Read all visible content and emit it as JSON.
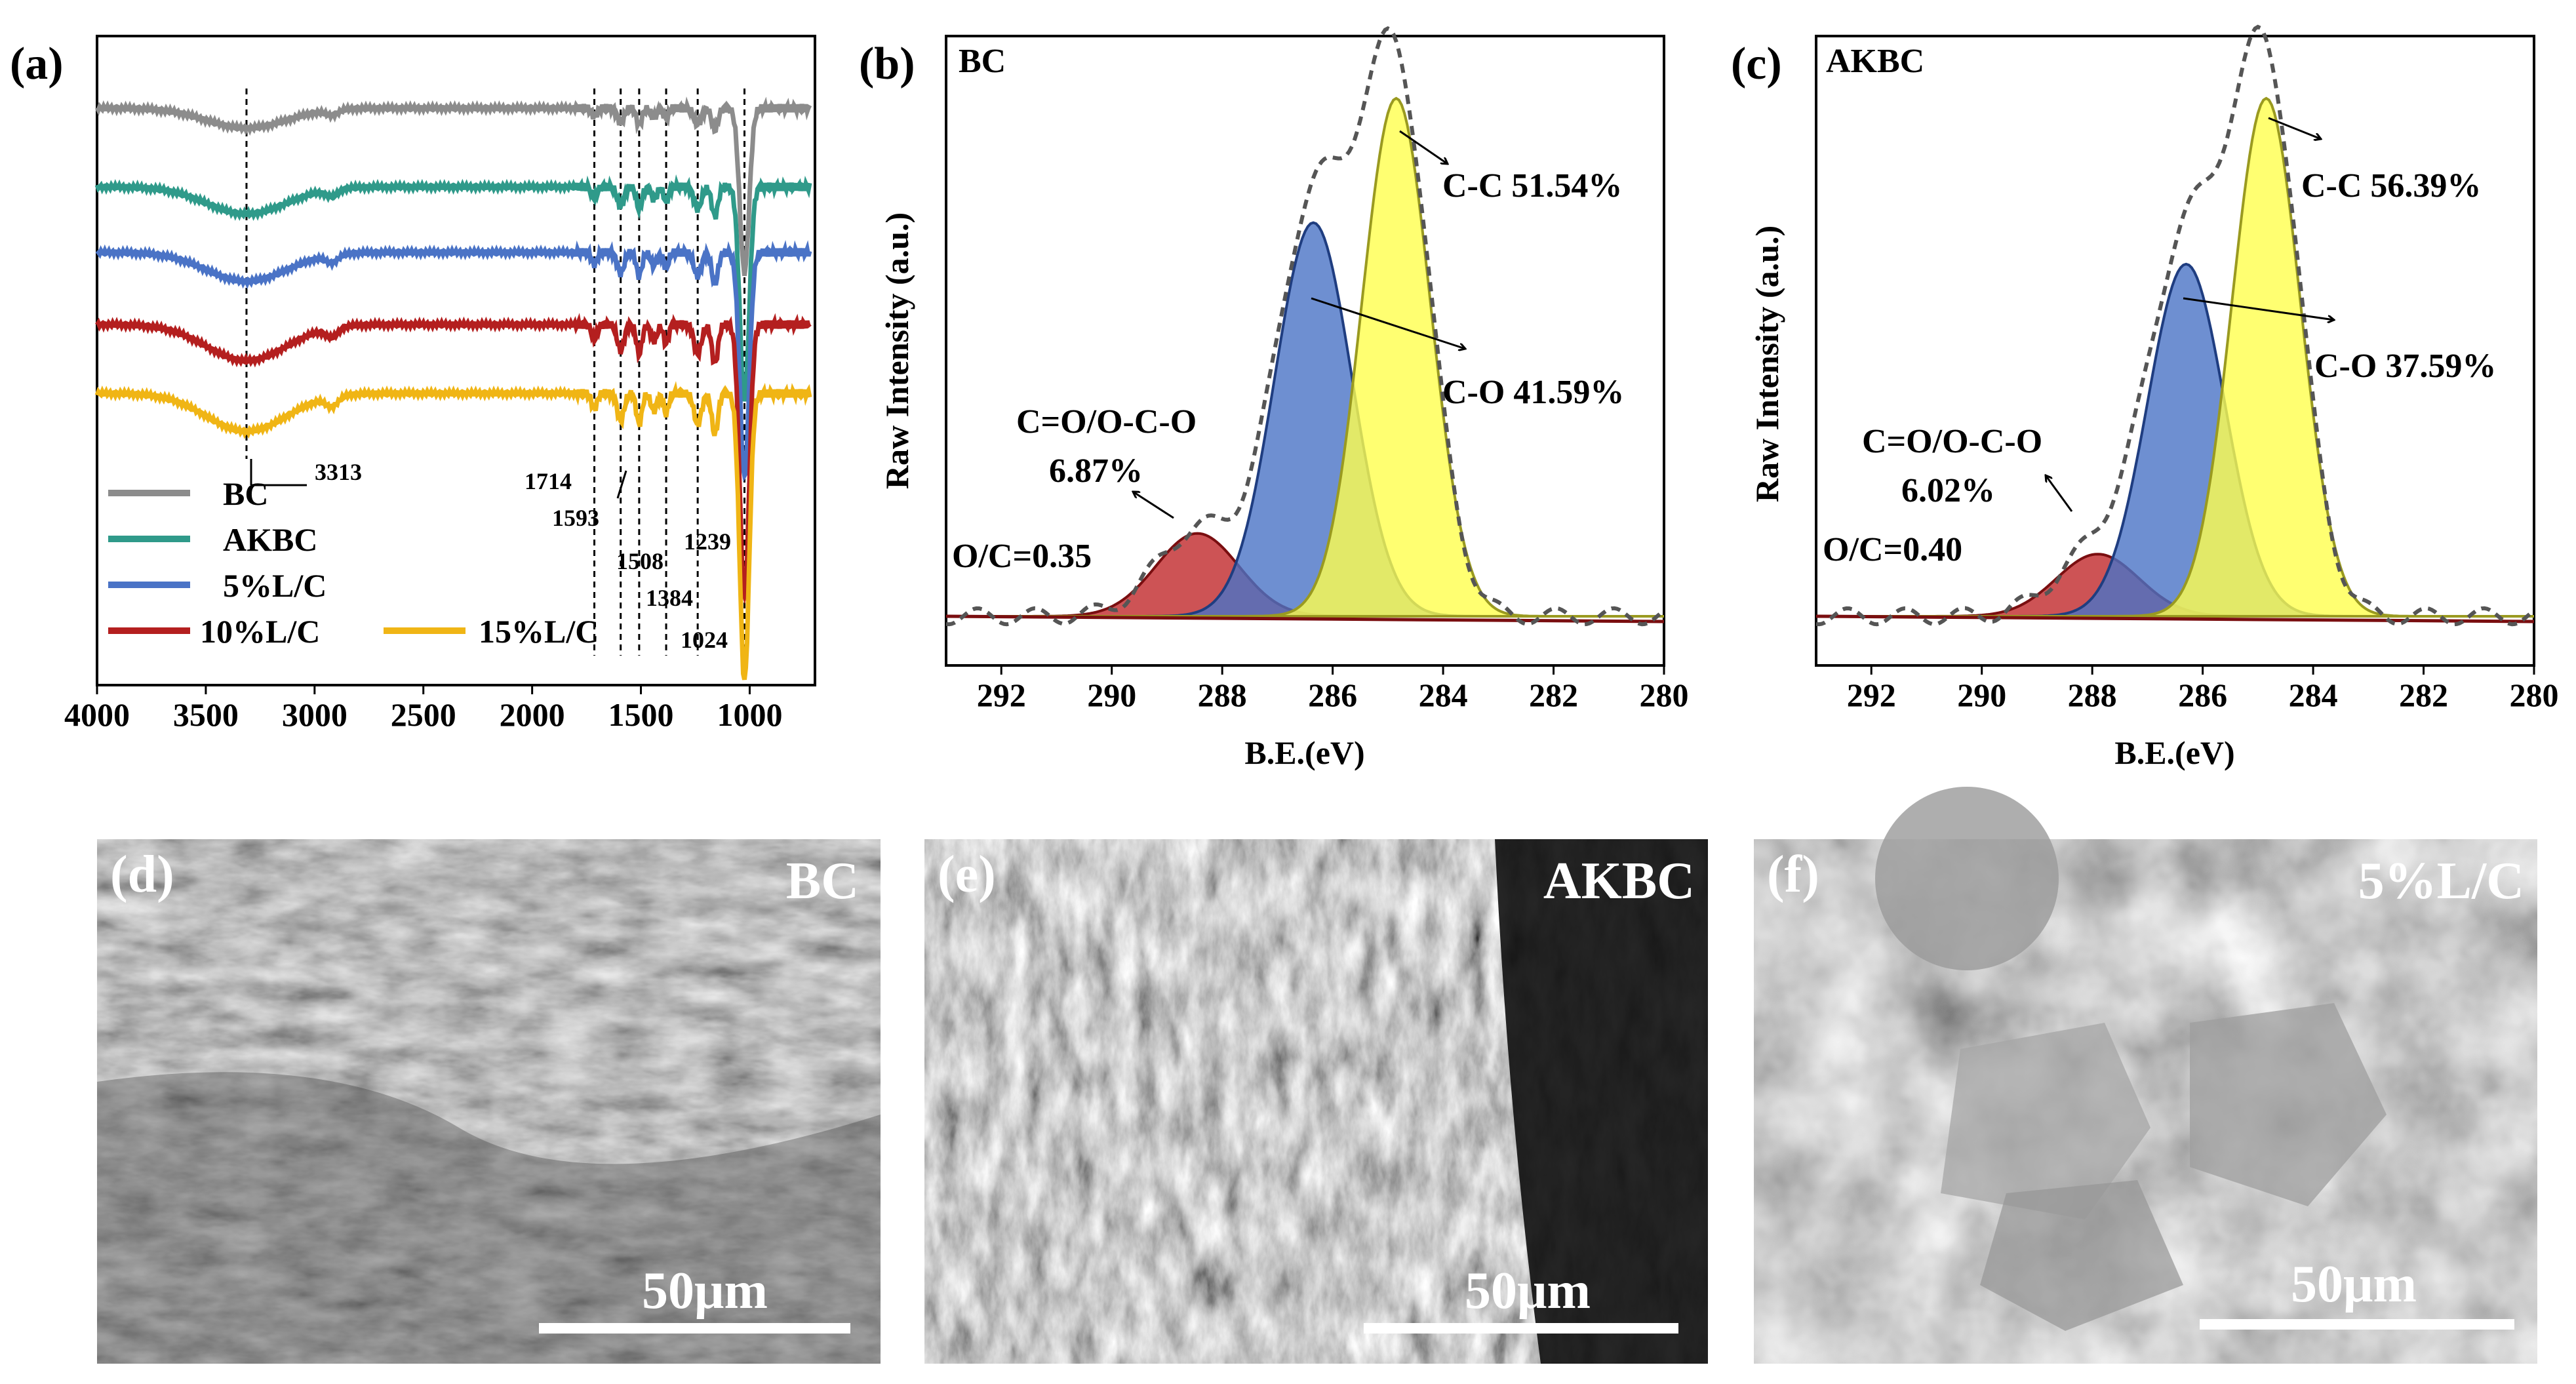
{
  "panels": {
    "a": {
      "label": "(a)",
      "chart_data": {
        "type": "line",
        "x_range": [
          4000,
          700
        ],
        "xticks": [
          4000,
          3500,
          3000,
          2500,
          2000,
          1500,
          1000
        ],
        "peak_labels": [
          "3313",
          "1714",
          "1593",
          "1508",
          "1384",
          "1239",
          "1024"
        ],
        "series": [
          {
            "name": "BC",
            "color": "#8c8c8c"
          },
          {
            "name": "AKBC",
            "color": "#2f9a8a"
          },
          {
            "name": "5%L/C",
            "color": "#4a73c6"
          },
          {
            "name": "10%L/C",
            "color": "#b41f1f"
          },
          {
            "name": "15%L/C",
            "color": "#f0b515"
          }
        ]
      }
    },
    "b": {
      "label": "(b)",
      "title": "BC",
      "chart_data": {
        "type": "area",
        "xlabel": "B.E.(eV)",
        "ylabel": "Raw Intensity (a.u.)",
        "x_range": [
          293,
          280
        ],
        "xticks": [
          292,
          290,
          288,
          286,
          284,
          282,
          280
        ],
        "peaks": [
          {
            "name": "C-C",
            "center": 284.85,
            "height": 1.0,
            "color": "#ffff4d",
            "label": "C-C 51.54%"
          },
          {
            "name": "C-O",
            "center": 286.35,
            "height": 0.76,
            "color": "#4a73c6",
            "label": "C-O 41.59%"
          },
          {
            "name": "C=O/O-C-O",
            "center": 288.45,
            "height": 0.16,
            "color": "#c0282a",
            "label_line1": "C=O/O-C-O",
            "label_line2": "6.87%"
          }
        ],
        "ratio_label": "O/C=0.35"
      }
    },
    "c": {
      "label": "(c)",
      "title": "AKBC",
      "chart_data": {
        "type": "area",
        "xlabel": "B.E.(eV)",
        "ylabel": "Raw Intensity (a.u.)",
        "x_range": [
          293,
          280
        ],
        "xticks": [
          292,
          290,
          288,
          286,
          284,
          282,
          280
        ],
        "peaks": [
          {
            "name": "C-C",
            "center": 284.85,
            "height": 1.0,
            "color": "#ffff4d",
            "label": "C-C 56.39%"
          },
          {
            "name": "C-O",
            "center": 286.3,
            "height": 0.68,
            "color": "#4a73c6",
            "label": "C-O 37.59%"
          },
          {
            "name": "C=O/O-C-O",
            "center": 287.9,
            "height": 0.12,
            "color": "#c0282a",
            "label_line1": "C=O/O-C-O",
            "label_line2": "6.02%"
          }
        ],
        "ratio_label": "O/C=0.40"
      }
    },
    "d": {
      "label": "(d)",
      "sample": "BC",
      "scale": "50μm"
    },
    "e": {
      "label": "(e)",
      "sample": "AKBC",
      "scale": "50μm"
    },
    "f": {
      "label": "(f)",
      "sample": "5%L/C",
      "scale": "50μm"
    }
  }
}
